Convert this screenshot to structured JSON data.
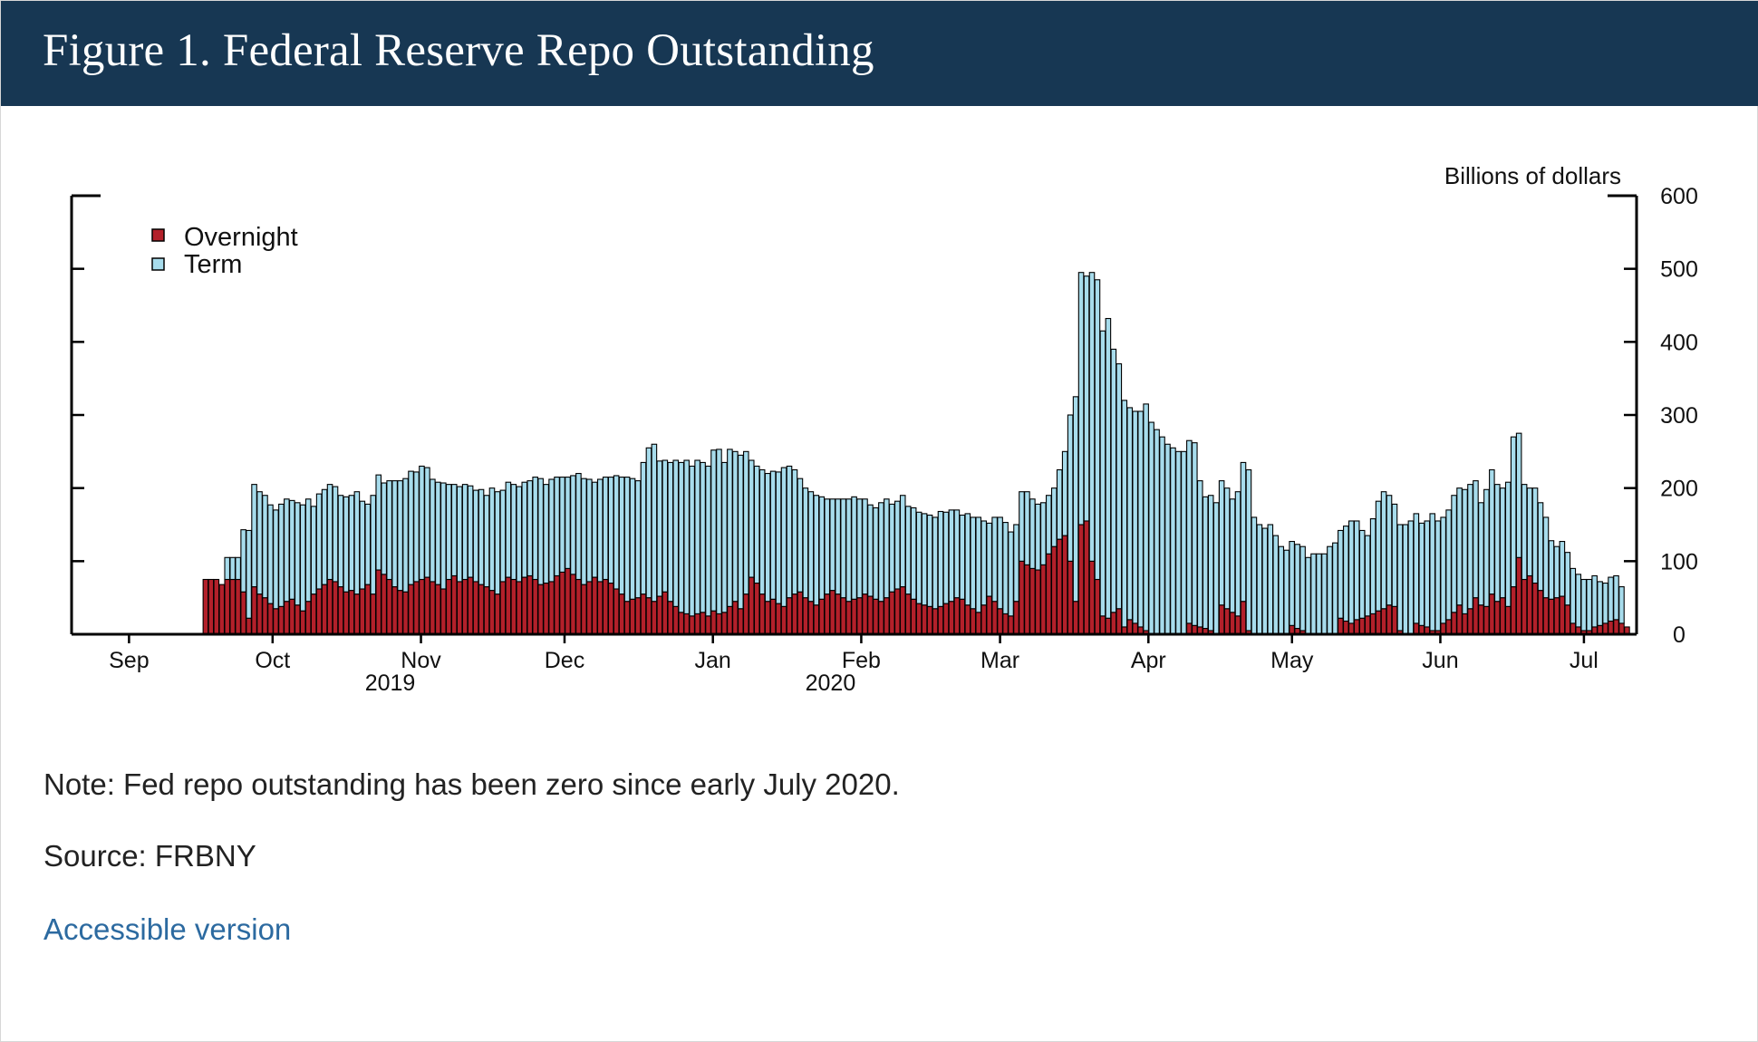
{
  "page": {
    "title": "Figure 1. Federal Reserve Repo Outstanding",
    "note": "Note: Fed repo outstanding has been zero since early July 2020.",
    "source": "Source: FRBNY",
    "accessible_link": "Accessible version"
  },
  "colors": {
    "header_bg": "#173753",
    "overnight": "#b3202a",
    "term": "#a7dcec",
    "link": "#2c6aa0"
  },
  "chart_data": {
    "type": "bar",
    "stacked": true,
    "title": "",
    "xlabel": "",
    "ylabel": "Billions of dollars",
    "ylim": [
      0,
      600
    ],
    "y_ticks": [
      0,
      100,
      200,
      300,
      400,
      500,
      600
    ],
    "y_axis_side": "right",
    "legend": {
      "placement": "top-left",
      "entries": [
        "Overnight",
        "Term"
      ]
    },
    "grid": false,
    "x_range": [
      "2019-08-20",
      "2020-07-12"
    ],
    "month_labels": [
      {
        "label": "Sep",
        "date": "2019-09-01",
        "year": ""
      },
      {
        "label": "Oct",
        "date": "2019-10-01",
        "year": ""
      },
      {
        "label": "Nov",
        "date": "2019-11-01",
        "year": "2019"
      },
      {
        "label": "Dec",
        "date": "2019-12-01",
        "year": ""
      },
      {
        "label": "Jan",
        "date": "2020-01-01",
        "year": ""
      },
      {
        "label": "Feb",
        "date": "2020-02-01",
        "year": "2020"
      },
      {
        "label": "Mar",
        "date": "2020-03-01",
        "year": ""
      },
      {
        "label": "Apr",
        "date": "2020-04-01",
        "year": ""
      },
      {
        "label": "May",
        "date": "2020-05-01",
        "year": ""
      },
      {
        "label": "Jun",
        "date": "2020-06-01",
        "year": ""
      },
      {
        "label": "Jul",
        "date": "2020-07-01",
        "year": ""
      }
    ],
    "start_date": "2019-09-17",
    "series": [
      {
        "name": "Overnight",
        "values": [
          75,
          75,
          75,
          68,
          75,
          75,
          75,
          58,
          22,
          65,
          55,
          50,
          42,
          35,
          38,
          45,
          48,
          40,
          32,
          45,
          55,
          62,
          68,
          75,
          72,
          65,
          58,
          60,
          55,
          62,
          68,
          55,
          88,
          82,
          75,
          65,
          60,
          58,
          68,
          72,
          75,
          78,
          72,
          68,
          62,
          75,
          80,
          72,
          75,
          78,
          72,
          68,
          65,
          60,
          55,
          72,
          78,
          75,
          72,
          78,
          80,
          75,
          68,
          70,
          72,
          80,
          85,
          90,
          82,
          75,
          68,
          72,
          78,
          72,
          75,
          70,
          62,
          55,
          45,
          48,
          50,
          55,
          50,
          45,
          52,
          58,
          45,
          38,
          30,
          28,
          25,
          28,
          30,
          25,
          32,
          28,
          30,
          38,
          45,
          35,
          55,
          78,
          70,
          55,
          45,
          48,
          42,
          38,
          50,
          55,
          58,
          50,
          45,
          40,
          48,
          55,
          60,
          55,
          50,
          45,
          48,
          50,
          55,
          52,
          48,
          45,
          50,
          58,
          62,
          65,
          55,
          48,
          42,
          40,
          38,
          35,
          38,
          42,
          45,
          50,
          48,
          40,
          35,
          30,
          40,
          52,
          45,
          35,
          28,
          25,
          45,
          100,
          95,
          90,
          88,
          95,
          110,
          120,
          130,
          135,
          100,
          45,
          150,
          155,
          100,
          75,
          25,
          22,
          30,
          35,
          10,
          20,
          15,
          10,
          5,
          0,
          0,
          0,
          0,
          0,
          0,
          0,
          15,
          12,
          10,
          8,
          5,
          0,
          40,
          35,
          30,
          25,
          45,
          5,
          0,
          0,
          0,
          0,
          0,
          0,
          0,
          12,
          8,
          5,
          0,
          0,
          0,
          0,
          0,
          0,
          22,
          18,
          15,
          20,
          22,
          25,
          28,
          32,
          35,
          40,
          38,
          5,
          0,
          0,
          15,
          12,
          10,
          5,
          5,
          15,
          20,
          30,
          40,
          28,
          35,
          50,
          40,
          38,
          55,
          45,
          50,
          38,
          65,
          105,
          75,
          80,
          70,
          60,
          50,
          48,
          50,
          52,
          40,
          15,
          10,
          5,
          5,
          10,
          12,
          15,
          18,
          20,
          15,
          10,
          12,
          15,
          18
        ]
      },
      {
        "name": "Term",
        "values": [
          0,
          0,
          0,
          0,
          30,
          30,
          30,
          85,
          120,
          140,
          140,
          140,
          135,
          135,
          140,
          140,
          135,
          140,
          145,
          140,
          120,
          130,
          130,
          130,
          130,
          125,
          130,
          130,
          140,
          120,
          110,
          135,
          130,
          125,
          135,
          145,
          150,
          155,
          155,
          150,
          155,
          150,
          140,
          140,
          145,
          130,
          125,
          130,
          130,
          125,
          125,
          130,
          125,
          140,
          140,
          125,
          130,
          130,
          130,
          130,
          130,
          140,
          145,
          135,
          140,
          135,
          130,
          125,
          135,
          145,
          145,
          140,
          130,
          140,
          140,
          145,
          155,
          160,
          170,
          165,
          160,
          180,
          205,
          215,
          185,
          180,
          190,
          200,
          205,
          210,
          205,
          210,
          205,
          205,
          220,
          225,
          205,
          215,
          205,
          210,
          195,
          160,
          160,
          170,
          175,
          175,
          180,
          190,
          180,
          170,
          155,
          150,
          150,
          150,
          140,
          130,
          125,
          130,
          135,
          140,
          140,
          135,
          130,
          125,
          125,
          135,
          135,
          120,
          120,
          125,
          120,
          125,
          125,
          125,
          125,
          125,
          130,
          125,
          125,
          120,
          115,
          125,
          125,
          130,
          115,
          100,
          115,
          125,
          125,
          115,
          105,
          95,
          100,
          95,
          90,
          85,
          80,
          80,
          95,
          115,
          200,
          280,
          345,
          335,
          395,
          410,
          390,
          410,
          360,
          335,
          310,
          290,
          290,
          295,
          310,
          290,
          280,
          270,
          260,
          255,
          250,
          250,
          250,
          250,
          200,
          180,
          185,
          180,
          170,
          165,
          155,
          170,
          190,
          220,
          160,
          150,
          145,
          150,
          135,
          120,
          115,
          115,
          115,
          115,
          105,
          110,
          110,
          110,
          120,
          125,
          120,
          130,
          140,
          135,
          120,
          110,
          130,
          150,
          160,
          150,
          140,
          145,
          150,
          155,
          150,
          140,
          145,
          160,
          150,
          145,
          150,
          160,
          160,
          170,
          170,
          160,
          140,
          160,
          170,
          160,
          150,
          170,
          205,
          170,
          130,
          120,
          130,
          120,
          110,
          80,
          70,
          75,
          72,
          75,
          72,
          70,
          70,
          70,
          60,
          55,
          60,
          60,
          50,
          0
        ]
      }
    ]
  }
}
